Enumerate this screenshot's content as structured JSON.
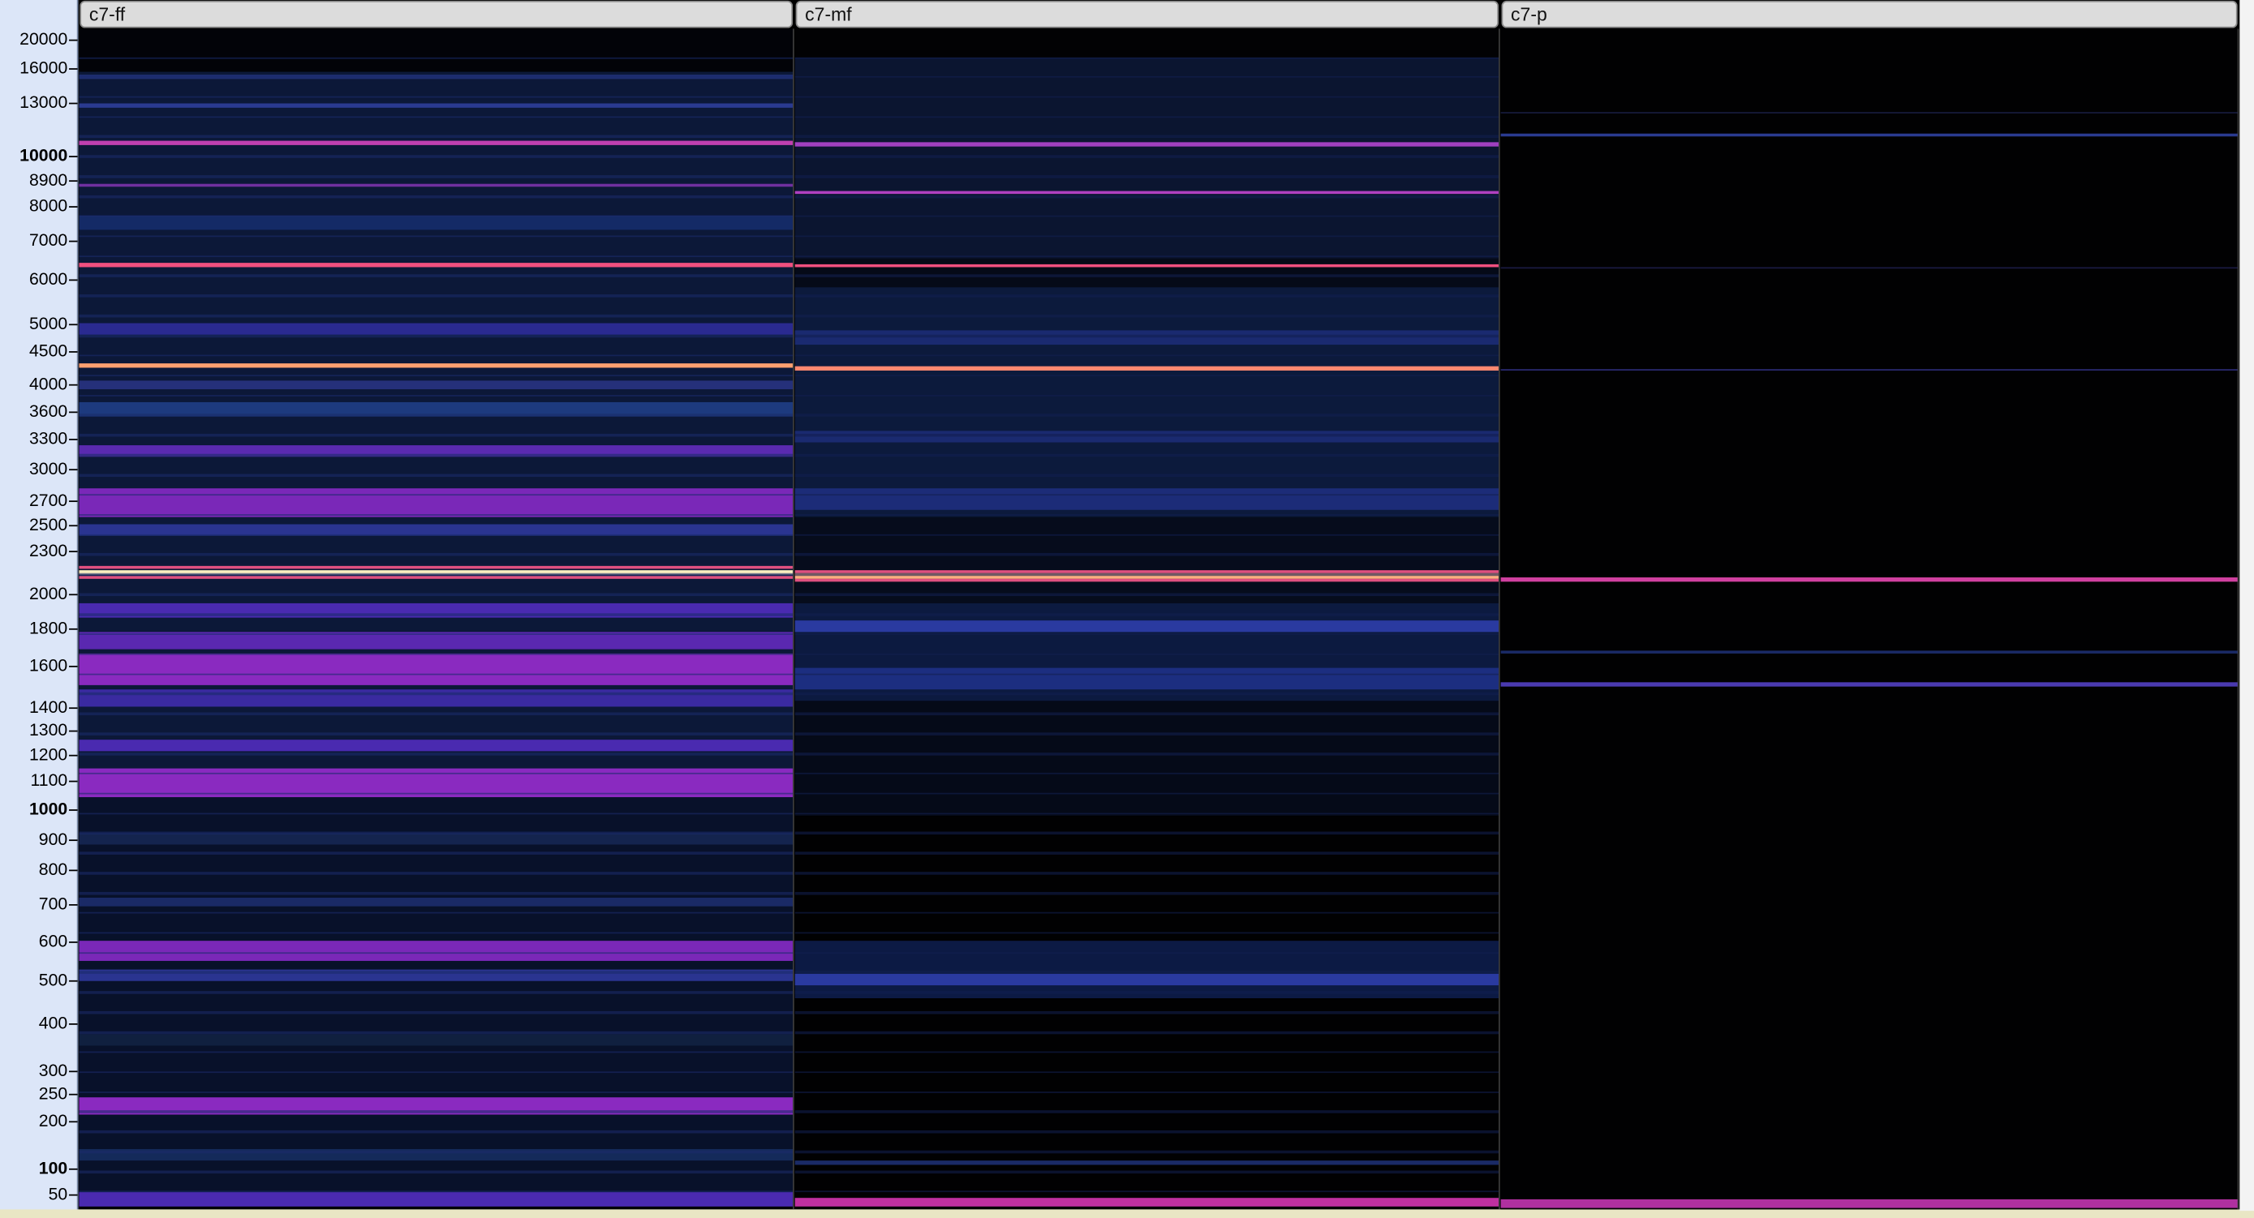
{
  "clips": [
    {
      "label": "c7-ff"
    },
    {
      "label": "c7-mf"
    },
    {
      "label": "c7-p"
    }
  ],
  "axis": {
    "ticks": [
      "20000",
      "16000",
      "13000",
      "10000",
      "8900",
      "8000",
      "7000",
      "6000",
      "5000",
      "4500",
      "4000",
      "3600",
      "3300",
      "3000",
      "2700",
      "2500",
      "2300",
      "2000",
      "1800",
      "1600",
      "1400",
      "1300",
      "1200",
      "1100",
      "1000",
      "900",
      "800",
      "700",
      "600",
      "500",
      "400",
      "300",
      "250",
      "200",
      "100",
      "50"
    ]
  }
}
